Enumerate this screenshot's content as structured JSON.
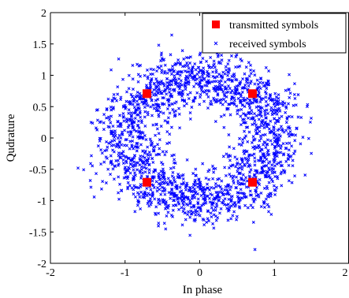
{
  "chart_data": {
    "type": "scatter",
    "xlabel": "In phase",
    "ylabel": "Qudrature",
    "xlim": [
      -2,
      2
    ],
    "ylim": [
      -2,
      2
    ],
    "x_ticks": [
      -2,
      -1,
      0,
      1,
      2
    ],
    "y_ticks": [
      -2,
      -1.5,
      -1,
      -0.5,
      0,
      0.5,
      1,
      1.5,
      2
    ],
    "x_tick_labels": [
      "-2",
      "-1",
      "0",
      "1",
      "2"
    ],
    "y_tick_labels": [
      "-2",
      "-1.5",
      "-1",
      "-0.5",
      "0",
      "0.5",
      "1",
      "1.5",
      "2"
    ],
    "grid": false,
    "legend": {
      "position": "top-right",
      "entries": [
        "transmitted symbols",
        "received symbols"
      ]
    },
    "series": [
      {
        "name": "transmitted symbols",
        "marker": "square",
        "color": "#ff0000",
        "points": [
          [
            -0.707,
            0.707
          ],
          [
            0.707,
            0.707
          ],
          [
            -0.707,
            -0.707
          ],
          [
            0.707,
            -0.707
          ]
        ]
      },
      {
        "name": "received symbols",
        "marker": "x",
        "color": "#0000ff",
        "distribution": {
          "shape": "ring",
          "approx_count": 2000,
          "radius_mean": 1.0,
          "radius_spread": 0.22,
          "inner_empty_radius": 0.3,
          "outer_extent": 1.75
        },
        "notable_points": [
          [
            -1.63,
            -0.48
          ],
          [
            0.74,
            -1.78
          ]
        ]
      }
    ]
  }
}
